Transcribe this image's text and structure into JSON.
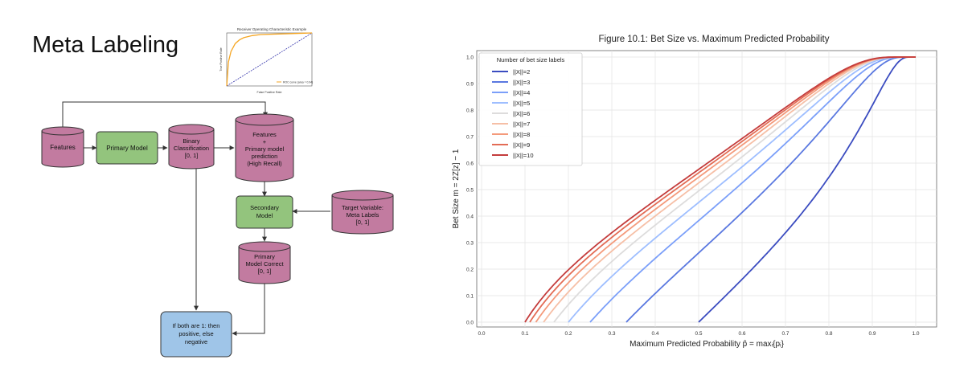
{
  "slide": {
    "title": "Meta Labeling"
  },
  "diagram": {
    "nodes": {
      "features": [
        "Features"
      ],
      "primary_model": [
        "Primary Model"
      ],
      "binary_classification": [
        "Binary",
        "Classification",
        "[0, 1]"
      ],
      "features_plus": [
        "Features",
        "+",
        "Primary model",
        "prediction",
        "(High Recall)"
      ],
      "secondary_model": [
        "Secondary",
        "Model"
      ],
      "target_variable": [
        "Target Variable:",
        "Meta Labels",
        "[0, 1]"
      ],
      "primary_model_correct": [
        "Primary",
        "Model Correct",
        "[0, 1]"
      ],
      "decision": [
        "If both are 1: then",
        "positive, else",
        "negative"
      ]
    },
    "colors": {
      "cylinder": "#c27ba0",
      "model": "#93c47d",
      "decision": "#9fc5e8",
      "stroke": "#333333"
    }
  },
  "roc_thumbnail": {
    "title": "Receiver Operating Characteristic Example",
    "xlabel": "False Positive Rate",
    "ylabel": "True Positive Rate",
    "legend": "ROC curve (area = 0.94)",
    "x": [
      0,
      0.02,
      0.05,
      0.1,
      0.15,
      0.2,
      0.3,
      0.4,
      0.6,
      0.8,
      1.0
    ],
    "y": [
      0,
      0.45,
      0.65,
      0.8,
      0.87,
      0.91,
      0.95,
      0.97,
      0.98,
      0.99,
      1.0
    ]
  },
  "chart_data": {
    "type": "line",
    "title": "Figure 10.1: Bet Size vs. Maximum Predicted Probability",
    "xlabel": "Maximum Predicted Probability p̂ = maxᵢ{pᵢ}",
    "ylabel": "Bet Size m = 2Z[z] − 1",
    "xlim": [
      0.0,
      1.0
    ],
    "ylim": [
      0.0,
      1.0
    ],
    "xticks": [
      "0.0",
      "0.1",
      "0.2",
      "0.3",
      "0.4",
      "0.5",
      "0.6",
      "0.7",
      "0.8",
      "0.9",
      "1.0"
    ],
    "yticks": [
      "0.0",
      "0.1",
      "0.2",
      "0.3",
      "0.4",
      "0.5",
      "0.6",
      "0.7",
      "0.8",
      "0.9",
      "1.0"
    ],
    "grid": true,
    "legend_title": "Number of bet size labels",
    "legend_position": "top-left",
    "series": [
      {
        "name": "||X||=2",
        "k": 2,
        "color": "#3b4cc0"
      },
      {
        "name": "||X||=3",
        "k": 3,
        "color": "#5a78e0"
      },
      {
        "name": "||X||=4",
        "k": 4,
        "color": "#7b9ff9"
      },
      {
        "name": "||X||=5",
        "k": 5,
        "color": "#9ebeff"
      },
      {
        "name": "||X||=6",
        "k": 6,
        "color": "#dddcdc"
      },
      {
        "name": "||X||=7",
        "k": 7,
        "color": "#f6bfa6"
      },
      {
        "name": "||X||=8",
        "k": 8,
        "color": "#f49a7b"
      },
      {
        "name": "||X||=9",
        "k": 9,
        "color": "#e36c55"
      },
      {
        "name": "||X||=10",
        "k": 10,
        "color": "#c43c3c"
      }
    ]
  }
}
